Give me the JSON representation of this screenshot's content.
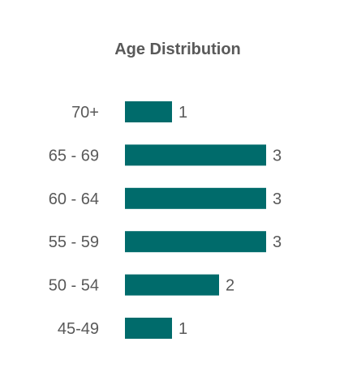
{
  "chart_data": {
    "type": "bar",
    "orientation": "horizontal",
    "title": "Age Distribution",
    "xlabel": "",
    "ylabel": "",
    "categories": [
      "70+",
      "65 - 69",
      "60 - 64",
      "55 - 59",
      "50 - 54",
      "45-49"
    ],
    "values": [
      1,
      3,
      3,
      3,
      2,
      1
    ],
    "xlim": [
      0,
      3
    ],
    "grid": false,
    "legend": "none",
    "data_labels": true,
    "bar_color": "#006B6B",
    "text_color": "#595959"
  }
}
